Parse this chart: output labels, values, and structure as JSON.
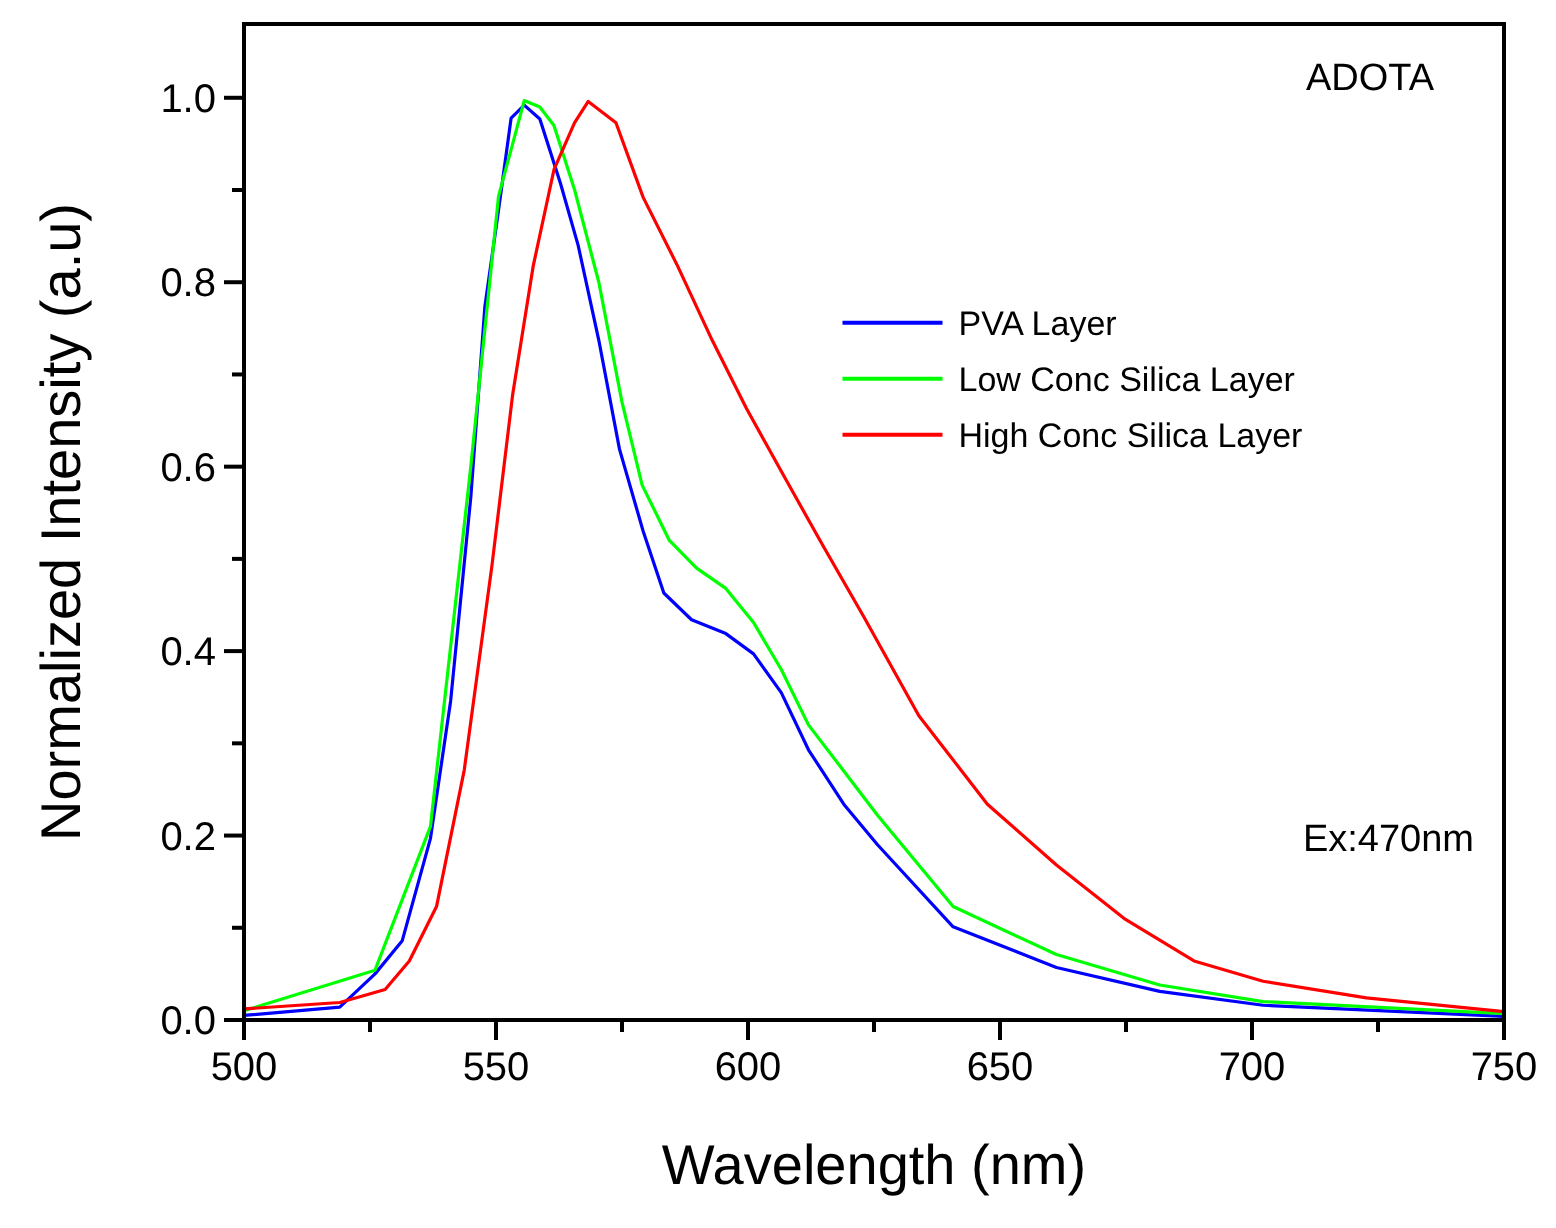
{
  "chart_data": {
    "type": "line",
    "xlabel": "Wavelength (nm)",
    "ylabel": "Normalized Intensity (a.u)",
    "annotations": [
      "ADOTA",
      "Ex:470nm"
    ],
    "xlim": [
      500,
      750
    ],
    "ylim": [
      0,
      1.08
    ],
    "xticks": [
      500,
      {
        "value": 525,
        "label": null
      },
      550,
      {
        "value": 575,
        "label": null
      },
      600,
      {
        "value": 625,
        "label": null
      },
      650,
      {
        "value": 675,
        "label": null
      },
      700,
      {
        "value": 725,
        "label": null
      },
      750
    ],
    "yticks": [
      {
        "value": 0,
        "label": "0.0"
      },
      {
        "value": 0.1,
        "label": null
      },
      {
        "value": 0.2,
        "label": "0.2"
      },
      {
        "value": 0.3,
        "label": null
      },
      {
        "value": 0.4,
        "label": "0.4"
      },
      {
        "value": 0.5,
        "label": null
      },
      {
        "value": 0.6,
        "label": "0.6"
      },
      {
        "value": 0.7,
        "label": null
      },
      {
        "value": 0.8,
        "label": "0.8"
      },
      {
        "value": 0.9,
        "label": null
      },
      {
        "value": 1,
        "label": "1.0"
      }
    ],
    "legend": "top right",
    "grid": false,
    "marker": "none",
    "line_style": "solid",
    "series": [
      {
        "name": "PVA Layer",
        "color": "#0000ff",
        "x": [
          500,
          519,
          526,
          531.4,
          537,
          541,
          545,
          547.8,
          550.5,
          553,
          555.6,
          558.7,
          562.8,
          566.3,
          570.4,
          574.5,
          579.2,
          583.3,
          588.8,
          595.6,
          601.1,
          606.6,
          612,
          619,
          625.7,
          640.7,
          661.2,
          681.7,
          702.2,
          750
        ],
        "values": [
          0.005,
          0.014,
          0.05,
          0.086,
          0.197,
          0.346,
          0.567,
          0.774,
          0.878,
          0.978,
          0.992,
          0.977,
          0.907,
          0.84,
          0.737,
          0.619,
          0.53,
          0.463,
          0.434,
          0.419,
          0.397,
          0.355,
          0.293,
          0.234,
          0.19,
          0.101,
          0.057,
          0.031,
          0.016,
          0.004
        ]
      },
      {
        "name": "Low Conc Silica Layer",
        "color": "#00ff00",
        "x": [
          500,
          526,
          537,
          545,
          550.5,
          555.6,
          558.7,
          561.5,
          565.6,
          570.4,
          575,
          579,
          584.4,
          589.8,
          595.6,
          601.1,
          606.6,
          612,
          619,
          625.7,
          640.7,
          661.2,
          681.7,
          702.2,
          750
        ],
        "values": [
          0.01,
          0.054,
          0.21,
          0.6,
          0.893,
          0.997,
          0.99,
          0.97,
          0.9,
          0.8,
          0.67,
          0.58,
          0.52,
          0.49,
          0.468,
          0.431,
          0.38,
          0.32,
          0.27,
          0.222,
          0.123,
          0.071,
          0.038,
          0.02,
          0.007
        ]
      },
      {
        "name": "High Conc Silica Layer",
        "color": "#ff0000",
        "x": [
          500,
          519,
          528,
          532.8,
          538.2,
          543.7,
          549.2,
          553.3,
          557.4,
          561.5,
          565.6,
          568.3,
          573.8,
          579.2,
          586,
          592.9,
          599.7,
          606.6,
          614.8,
          623,
          633.9,
          647.5,
          661.2,
          674.9,
          688.5,
          702.2,
          722.7,
          750
        ],
        "values": [
          0.012,
          0.019,
          0.033,
          0.064,
          0.123,
          0.271,
          0.493,
          0.678,
          0.818,
          0.922,
          0.973,
          0.996,
          0.973,
          0.892,
          0.818,
          0.737,
          0.663,
          0.595,
          0.515,
          0.437,
          0.33,
          0.234,
          0.168,
          0.109,
          0.064,
          0.042,
          0.024,
          0.009
        ]
      }
    ]
  }
}
